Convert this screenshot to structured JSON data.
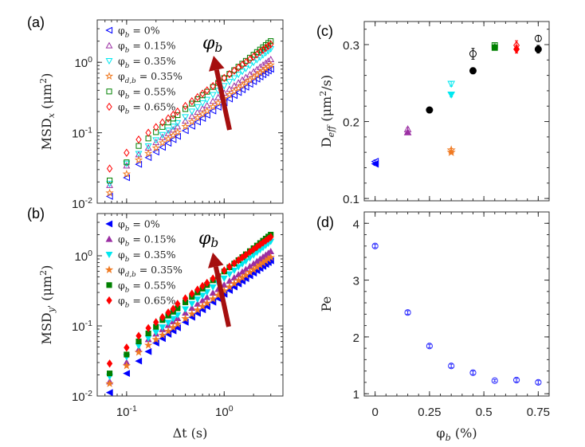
{
  "figure": {
    "panel_labels": [
      "(a)",
      "(b)",
      "(c)",
      "(d)"
    ]
  },
  "chart_data": [
    {
      "panel": "(a)",
      "type": "scatter",
      "xscale": "log",
      "yscale": "log",
      "xlim": [
        0.05,
        4
      ],
      "ylim": [
        0.01,
        4
      ],
      "xlabel": "",
      "ylabel": "MSD_{x} (μm^{2})",
      "xticks": [
        0.1,
        1
      ],
      "xticklabels": [],
      "yticks": [
        0.01,
        0.1,
        1
      ],
      "yticklabels": [
        "10^{-2}",
        "10^{-1}",
        "10^{0}"
      ],
      "legend": "top-left",
      "annotation": {
        "text": "φ_{b}",
        "arrow_color": "#a50f0f",
        "meaning": "increasing"
      },
      "x": [
        0.067,
        0.1,
        0.133,
        0.167,
        0.2,
        0.233,
        0.267,
        0.3,
        0.333,
        0.4,
        0.467,
        0.533,
        0.6,
        0.667,
        0.767,
        0.867,
        1.0,
        1.133,
        1.267,
        1.4,
        1.533,
        1.667,
        1.833,
        2.0,
        2.167,
        2.333,
        2.5,
        2.667,
        2.833,
        3.0
      ],
      "series": [
        {
          "name": "φ_{b} = 0%",
          "marker": "triangle-left",
          "filled": false,
          "color": "#0000ff",
          "values": [
            0.0125,
            0.023,
            0.0356,
            0.0444,
            0.0533,
            0.0622,
            0.0711,
            0.08,
            0.0889,
            0.107,
            0.124,
            0.142,
            0.16,
            0.178,
            0.204,
            0.231,
            0.267,
            0.302,
            0.338,
            0.373,
            0.409,
            0.444,
            0.489,
            0.533,
            0.578,
            0.622,
            0.667,
            0.711,
            0.756,
            0.8
          ]
        },
        {
          "name": "φ_{b} = 0.15%",
          "marker": "triangle-up",
          "filled": false,
          "color": "#9b2fa3",
          "values": [
            0.018,
            0.034,
            0.049,
            0.061,
            0.073,
            0.086,
            0.098,
            0.11,
            0.122,
            0.147,
            0.171,
            0.196,
            0.22,
            0.244,
            0.281,
            0.318,
            0.367,
            0.416,
            0.464,
            0.513,
            0.562,
            0.611,
            0.672,
            0.733,
            0.794,
            0.856,
            0.917,
            0.978,
            1.039,
            1.1
          ]
        },
        {
          "name": "φ_{b} = 0.35%",
          "marker": "triangle-down",
          "filled": false,
          "color": "#00e8f0",
          "values": [
            0.019,
            0.0367,
            0.0505,
            0.0645,
            0.0789,
            0.0935,
            0.108,
            0.123,
            0.138,
            0.168,
            0.201,
            0.232,
            0.264,
            0.296,
            0.346,
            0.396,
            0.463,
            0.531,
            0.6,
            0.671,
            0.741,
            0.813,
            0.902,
            0.992,
            1.083,
            1.176,
            1.268,
            1.361,
            1.454,
            1.55
          ]
        },
        {
          "name": "φ_{d,b} = 0.35%",
          "marker": "star",
          "filled": false,
          "color": "#f07a22",
          "values": [
            0.014,
            0.026,
            0.041,
            0.051,
            0.061,
            0.072,
            0.082,
            0.092,
            0.102,
            0.123,
            0.143,
            0.164,
            0.184,
            0.204,
            0.235,
            0.266,
            0.307,
            0.348,
            0.388,
            0.429,
            0.47,
            0.511,
            0.562,
            0.613,
            0.664,
            0.716,
            0.767,
            0.818,
            0.869,
            0.92
          ]
        },
        {
          "name": "φ_{b} = 0.55%",
          "marker": "square",
          "filled": false,
          "color": "#008000",
          "values": [
            0.021,
            0.038,
            0.065,
            0.083,
            0.102,
            0.121,
            0.14,
            0.159,
            0.178,
            0.217,
            0.259,
            0.299,
            0.34,
            0.382,
            0.447,
            0.51,
            0.597,
            0.686,
            0.774,
            0.866,
            0.956,
            1.049,
            1.163,
            1.281,
            1.398,
            1.517,
            1.636,
            1.757,
            1.877,
            2.0
          ]
        },
        {
          "name": "φ_{b} = 0.65%",
          "marker": "diamond",
          "filled": false,
          "color": "#ff0000",
          "values": [
            0.031,
            0.052,
            0.08,
            0.1,
            0.12,
            0.14,
            0.16,
            0.18,
            0.2,
            0.24,
            0.28,
            0.32,
            0.36,
            0.4,
            0.46,
            0.52,
            0.6,
            0.68,
            0.76,
            0.84,
            0.92,
            1.0,
            1.1,
            1.2,
            1.3,
            1.4,
            1.5,
            1.6,
            1.7,
            1.8
          ]
        }
      ]
    },
    {
      "panel": "(b)",
      "type": "scatter",
      "xscale": "log",
      "yscale": "log",
      "xlim": [
        0.05,
        4
      ],
      "ylim": [
        0.01,
        4
      ],
      "xlabel": "Δt (s)",
      "ylabel": "MSD_{y'} (μm^{2})",
      "xticks": [
        0.1,
        1
      ],
      "xticklabels": [
        "10^{-1}",
        "10^{0}"
      ],
      "yticks": [
        0.01,
        0.1,
        1
      ],
      "yticklabels": [
        "10^{-2}",
        "10^{-1}",
        "10^{0}"
      ],
      "legend": "top-left",
      "annotation": {
        "text": "φ_{b}",
        "arrow_color": "#a50f0f",
        "meaning": "increasing"
      },
      "x": [
        0.067,
        0.1,
        0.133,
        0.167,
        0.2,
        0.233,
        0.267,
        0.3,
        0.333,
        0.4,
        0.467,
        0.533,
        0.6,
        0.667,
        0.767,
        0.867,
        1.0,
        1.133,
        1.267,
        1.4,
        1.533,
        1.667,
        1.833,
        2.0,
        2.167,
        2.333,
        2.5,
        2.667,
        2.833,
        3.0
      ],
      "series": [
        {
          "name": "φ_{b} = 0%",
          "marker": "triangle-left",
          "filled": true,
          "color": "#0000ff",
          "values": [
            0.0112,
            0.021,
            0.0315,
            0.043,
            0.057,
            0.066,
            0.076,
            0.085,
            0.094,
            0.113,
            0.133,
            0.151,
            0.17,
            0.189,
            0.218,
            0.246,
            0.283,
            0.321,
            0.359,
            0.397,
            0.434,
            0.473,
            0.519,
            0.567,
            0.614,
            0.661,
            0.708,
            0.756,
            0.802,
            0.85
          ]
        },
        {
          "name": "φ_{b} = 0.15%",
          "marker": "triangle-up",
          "filled": true,
          "color": "#9b2fa3",
          "values": [
            0.016,
            0.03,
            0.046,
            0.064,
            0.077,
            0.089,
            0.102,
            0.115,
            0.128,
            0.153,
            0.179,
            0.205,
            0.23,
            0.255,
            0.294,
            0.332,
            0.383,
            0.435,
            0.485,
            0.537,
            0.588,
            0.639,
            0.703,
            0.767,
            0.83,
            0.895,
            0.958,
            1.022,
            1.086,
            1.15
          ]
        },
        {
          "name": "φ_{b} = 0.35%",
          "marker": "triangle-down",
          "filled": true,
          "color": "#00e8f0",
          "values": [
            0.019,
            0.036,
            0.052,
            0.067,
            0.081,
            0.096,
            0.112,
            0.127,
            0.143,
            0.174,
            0.207,
            0.24,
            0.272,
            0.305,
            0.358,
            0.408,
            0.477,
            0.548,
            0.619,
            0.693,
            0.764,
            0.839,
            0.931,
            1.024,
            1.118,
            1.214,
            1.309,
            1.405,
            1.501,
            1.6
          ]
        },
        {
          "name": "φ_{d,b} = 0.35%",
          "marker": "star",
          "filled": true,
          "color": "#f07a22",
          "values": [
            0.015,
            0.027,
            0.042,
            0.053,
            0.064,
            0.074,
            0.084,
            0.095,
            0.106,
            0.127,
            0.148,
            0.169,
            0.19,
            0.211,
            0.243,
            0.274,
            0.317,
            0.359,
            0.401,
            0.444,
            0.486,
            0.528,
            0.581,
            0.633,
            0.686,
            0.739,
            0.792,
            0.845,
            0.897,
            0.95
          ]
        },
        {
          "name": "φ_{b} = 0.55%",
          "marker": "square",
          "filled": true,
          "color": "#008000",
          "values": [
            0.021,
            0.039,
            0.06,
            0.078,
            0.097,
            0.121,
            0.14,
            0.159,
            0.178,
            0.217,
            0.259,
            0.299,
            0.34,
            0.382,
            0.447,
            0.51,
            0.597,
            0.686,
            0.774,
            0.866,
            0.956,
            1.049,
            1.163,
            1.281,
            1.398,
            1.517,
            1.636,
            1.757,
            1.877,
            2.0
          ]
        },
        {
          "name": "φ_{b} = 0.65%",
          "marker": "diamond",
          "filled": true,
          "color": "#ff0000",
          "values": [
            0.029,
            0.049,
            0.072,
            0.093,
            0.113,
            0.133,
            0.155,
            0.175,
            0.206,
            0.247,
            0.288,
            0.329,
            0.37,
            0.411,
            0.473,
            0.534,
            0.617,
            0.699,
            0.781,
            0.863,
            0.946,
            1.028,
            1.131,
            1.233,
            1.336,
            1.439,
            1.542,
            1.644,
            1.747,
            1.85
          ]
        }
      ]
    },
    {
      "panel": "(c)",
      "type": "scatter",
      "xscale": "linear",
      "yscale": "linear",
      "xlim": [
        -0.05,
        0.8
      ],
      "ylim": [
        0.097,
        0.33
      ],
      "xlabel": "",
      "ylabel": "D_{eff} (μm^{2}/s)",
      "xticks": [
        0,
        0.25,
        0.5,
        0.75
      ],
      "xticklabels": [],
      "yticks": [
        0.1,
        0.2,
        0.3
      ],
      "yticklabels": [
        "0.1",
        "0.2",
        "0.3"
      ],
      "series": [
        {
          "marker": "triangle-left",
          "filled": false,
          "color": "#0000ff",
          "points": [
            [
              0,
              0.148,
              0.002
            ]
          ]
        },
        {
          "marker": "triangle-left",
          "filled": true,
          "color": "#0000ff",
          "points": [
            [
              0,
              0.145,
              0.002
            ]
          ]
        },
        {
          "marker": "triangle-up",
          "filled": false,
          "color": "#9b2fa3",
          "points": [
            [
              0.15,
              0.19,
              0.002
            ]
          ]
        },
        {
          "marker": "triangle-up",
          "filled": true,
          "color": "#9b2fa3",
          "points": [
            [
              0.15,
              0.186,
              0.002
            ]
          ]
        },
        {
          "marker": "circle",
          "filled": true,
          "color": "#000000",
          "points": [
            [
              0.25,
              0.215,
              0.002
            ],
            [
              0.45,
              0.266,
              0.004
            ],
            [
              0.75,
              0.294,
              0.005
            ]
          ]
        },
        {
          "marker": "circle",
          "filled": false,
          "color": "#000000",
          "points": [
            [
              0.45,
              0.288,
              0.007
            ],
            [
              0.75,
              0.308,
              0.004
            ]
          ]
        },
        {
          "marker": "triangle-down",
          "filled": false,
          "color": "#00e8f0",
          "points": [
            [
              0.35,
              0.249,
              0.003
            ]
          ]
        },
        {
          "marker": "triangle-down",
          "filled": true,
          "color": "#00e8f0",
          "points": [
            [
              0.35,
              0.235,
              0.003
            ]
          ]
        },
        {
          "marker": "star",
          "filled": false,
          "color": "#f07a22",
          "points": [
            [
              0.35,
              0.163,
              0.002
            ]
          ]
        },
        {
          "marker": "star",
          "filled": true,
          "color": "#f07a22",
          "points": [
            [
              0.35,
              0.16,
              0.002
            ]
          ]
        },
        {
          "marker": "square",
          "filled": false,
          "color": "#008000",
          "points": [
            [
              0.55,
              0.299,
              0.002
            ]
          ]
        },
        {
          "marker": "square",
          "filled": true,
          "color": "#008000",
          "points": [
            [
              0.55,
              0.296,
              0.002
            ]
          ]
        },
        {
          "marker": "diamond",
          "filled": false,
          "color": "#ff0000",
          "points": [
            [
              0.65,
              0.299,
              0.006
            ]
          ]
        },
        {
          "marker": "diamond",
          "filled": true,
          "color": "#ff0000",
          "points": [
            [
              0.65,
              0.294,
              0.005
            ]
          ]
        }
      ]
    },
    {
      "panel": "(d)",
      "type": "scatter",
      "xscale": "linear",
      "yscale": "linear",
      "xlim": [
        -0.05,
        0.8
      ],
      "ylim": [
        0.96,
        4.2
      ],
      "xlabel": "φ_{b} (%)",
      "ylabel": "Pe",
      "xticks": [
        0,
        0.25,
        0.5,
        0.75
      ],
      "xticklabels": [
        "0",
        "0.25",
        "0.5",
        "0.75"
      ],
      "yticks": [
        1,
        2,
        3,
        4
      ],
      "yticklabels": [
        "1",
        "2",
        "3",
        "4"
      ],
      "series": [
        {
          "marker": "circle",
          "filled": false,
          "color": "#2b2bff",
          "points": [
            [
              0,
              3.6,
              0.03
            ],
            [
              0.15,
              2.43,
              0.03
            ],
            [
              0.25,
              1.84,
              0.03
            ],
            [
              0.35,
              1.49,
              0.03
            ],
            [
              0.45,
              1.37,
              0.03
            ],
            [
              0.55,
              1.23,
              0.02
            ],
            [
              0.65,
              1.24,
              0.03
            ],
            [
              0.75,
              1.2,
              0.03
            ]
          ]
        }
      ]
    }
  ]
}
